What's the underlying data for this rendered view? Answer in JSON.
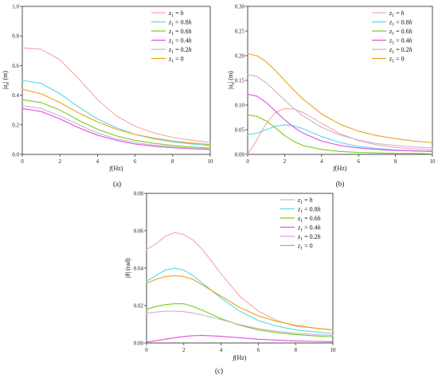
{
  "chart_data": [
    {
      "type": "line",
      "panel_label": "(a)",
      "xlabel_main": "f",
      "xlabel_unit": "(Hz)",
      "ylabel_main": "|u",
      "ylabel_sub": "x",
      "ylabel_rest": "| (m)",
      "xlim": [
        0,
        10
      ],
      "ylim": [
        0,
        1.0
      ],
      "xticks": [
        "0",
        "2",
        "4",
        "6",
        "8",
        "10"
      ],
      "yticks": [
        "0.0",
        "0.2",
        "0.4",
        "0.6",
        "0.8",
        "1.0"
      ],
      "legend_position": "top-right",
      "series": [
        {
          "name_sub": "1",
          "name_val": "h",
          "name_coef": "",
          "color": "#F7A6A6",
          "x": [
            0,
            1,
            2,
            3,
            4,
            5,
            6,
            7,
            8,
            9,
            10
          ],
          "y": [
            0.72,
            0.71,
            0.64,
            0.51,
            0.37,
            0.26,
            0.19,
            0.145,
            0.115,
            0.095,
            0.08
          ]
        },
        {
          "name_sub": "1",
          "name_val": "h",
          "name_coef": "0.8",
          "color": "#56DCE5",
          "x": [
            0,
            1,
            2,
            3,
            4,
            5,
            6,
            7,
            8,
            9,
            10
          ],
          "y": [
            0.5,
            0.48,
            0.41,
            0.32,
            0.24,
            0.18,
            0.135,
            0.105,
            0.085,
            0.07,
            0.06
          ]
        },
        {
          "name_sub": "1",
          "name_val": "h",
          "name_coef": "0.6",
          "color": "#7ACC1F",
          "x": [
            0,
            1,
            2,
            3,
            4,
            5,
            6,
            7,
            8,
            9,
            10
          ],
          "y": [
            0.37,
            0.35,
            0.3,
            0.23,
            0.17,
            0.125,
            0.095,
            0.075,
            0.06,
            0.05,
            0.042
          ]
        },
        {
          "name_sub": "1",
          "name_val": "h",
          "name_coef": "0.4",
          "color": "#E04FE0",
          "x": [
            0,
            1,
            2,
            3,
            4,
            5,
            6,
            7,
            8,
            9,
            10
          ],
          "y": [
            0.31,
            0.29,
            0.24,
            0.18,
            0.13,
            0.095,
            0.07,
            0.055,
            0.045,
            0.038,
            0.032
          ]
        },
        {
          "name_sub": "1",
          "name_val": "h",
          "name_coef": "0.2",
          "color": "#C4B4D0",
          "x": [
            0,
            1,
            2,
            3,
            4,
            5,
            6,
            7,
            8,
            9,
            10
          ],
          "y": [
            0.33,
            0.31,
            0.26,
            0.2,
            0.145,
            0.105,
            0.08,
            0.062,
            0.05,
            0.042,
            0.036
          ]
        },
        {
          "name_sub": "1",
          "name_val": "0",
          "name_coef": "",
          "color": "#E8A317",
          "x": [
            0,
            1,
            2,
            3,
            4,
            5,
            6,
            7,
            8,
            9,
            10
          ],
          "y": [
            0.44,
            0.41,
            0.35,
            0.28,
            0.22,
            0.17,
            0.135,
            0.11,
            0.09,
            0.077,
            0.066
          ]
        }
      ]
    },
    {
      "type": "line",
      "panel_label": "(b)",
      "xlabel_main": "f",
      "xlabel_unit": "(Hz)",
      "ylabel_main": "|u",
      "ylabel_sub": "z",
      "ylabel_rest": "| (m)",
      "xlim": [
        0,
        10
      ],
      "ylim": [
        0,
        0.3
      ],
      "xticks": [
        "0",
        "2",
        "4",
        "6",
        "8",
        "10"
      ],
      "yticks": [
        "0.00",
        "0.05",
        "0.10",
        "0.15",
        "0.20",
        "0.25",
        "0.30"
      ],
      "legend_position": "top-right",
      "series": [
        {
          "name_sub": "1",
          "name_val": "h",
          "name_coef": "",
          "color": "#F7A6A6",
          "x": [
            0,
            0.5,
            1,
            1.5,
            2,
            2.5,
            3,
            4,
            5,
            6,
            7,
            8,
            9,
            10
          ],
          "y": [
            0,
            0.03,
            0.062,
            0.085,
            0.093,
            0.092,
            0.085,
            0.063,
            0.042,
            0.028,
            0.019,
            0.014,
            0.011,
            0.009
          ]
        },
        {
          "name_sub": "1",
          "name_val": "h",
          "name_coef": "0.8",
          "color": "#56DCE5",
          "x": [
            0,
            0.5,
            1,
            1.5,
            2,
            2.5,
            3,
            4,
            5,
            6,
            7,
            8,
            9,
            10
          ],
          "y": [
            0.04,
            0.043,
            0.05,
            0.057,
            0.06,
            0.058,
            0.052,
            0.036,
            0.024,
            0.016,
            0.012,
            0.009,
            0.007,
            0.006
          ]
        },
        {
          "name_sub": "1",
          "name_val": "h",
          "name_coef": "0.6",
          "color": "#7ACC1F",
          "x": [
            0,
            0.5,
            1,
            1.5,
            2,
            2.5,
            3,
            4,
            5,
            6,
            7,
            8,
            9,
            10
          ],
          "y": [
            0.08,
            0.077,
            0.068,
            0.054,
            0.038,
            0.026,
            0.018,
            0.01,
            0.006,
            0.004,
            0.003,
            0.002,
            0.002,
            0.001
          ]
        },
        {
          "name_sub": "1",
          "name_val": "h",
          "name_coef": "0.4",
          "color": "#E04FE0",
          "x": [
            0,
            0.5,
            1,
            1.5,
            2,
            2.5,
            3,
            4,
            5,
            6,
            7,
            8,
            9,
            10
          ],
          "y": [
            0.122,
            0.118,
            0.105,
            0.088,
            0.07,
            0.055,
            0.043,
            0.027,
            0.018,
            0.013,
            0.01,
            0.008,
            0.007,
            0.006
          ]
        },
        {
          "name_sub": "1",
          "name_val": "h",
          "name_coef": "0.2",
          "color": "#C4B4D0",
          "x": [
            0,
            0.5,
            1,
            1.5,
            2,
            2.5,
            3,
            4,
            5,
            6,
            7,
            8,
            9,
            10
          ],
          "y": [
            0.162,
            0.158,
            0.145,
            0.128,
            0.11,
            0.093,
            0.078,
            0.055,
            0.039,
            0.029,
            0.022,
            0.018,
            0.015,
            0.013
          ]
        },
        {
          "name_sub": "1",
          "name_val": "0",
          "name_coef": "",
          "color": "#E8A317",
          "x": [
            0,
            0.5,
            1,
            1.5,
            2,
            2.5,
            3,
            4,
            5,
            6,
            7,
            8,
            9,
            10
          ],
          "y": [
            0.204,
            0.2,
            0.188,
            0.17,
            0.15,
            0.13,
            0.112,
            0.082,
            0.061,
            0.047,
            0.038,
            0.032,
            0.027,
            0.024
          ]
        }
      ]
    },
    {
      "type": "line",
      "panel_label": "(c)",
      "xlabel_main": "f",
      "xlabel_unit": "(Hz)",
      "ylabel_main": "|θ",
      "ylabel_sub": "",
      "ylabel_rest": "| (rad)",
      "xlim": [
        0,
        10
      ],
      "ylim": [
        0,
        0.08
      ],
      "xticks": [
        "0",
        "2",
        "4",
        "6",
        "8",
        "10"
      ],
      "yticks": [
        "0.00",
        "0.02",
        "0.04",
        "0.06",
        "0.08"
      ],
      "legend_position": "top-left",
      "series": [
        {
          "name_sub": "1",
          "name_val": "h",
          "name_coef": "",
          "color": "#F7A6A6",
          "x": [
            0,
            0.5,
            1,
            1.5,
            2,
            2.5,
            3,
            4,
            5,
            6,
            7,
            8,
            9,
            10
          ],
          "y": [
            0.05,
            0.053,
            0.057,
            0.059,
            0.058,
            0.055,
            0.05,
            0.037,
            0.025,
            0.017,
            0.012,
            0.009,
            0.008,
            0.007
          ]
        },
        {
          "name_sub": "1",
          "name_val": "h",
          "name_coef": "0.8",
          "color": "#56DCE5",
          "x": [
            0,
            0.5,
            1,
            1.5,
            2,
            2.5,
            3,
            4,
            5,
            6,
            7,
            8,
            9,
            10
          ],
          "y": [
            0.033,
            0.036,
            0.039,
            0.04,
            0.039,
            0.036,
            0.032,
            0.024,
            0.017,
            0.012,
            0.009,
            0.007,
            0.006,
            0.005
          ]
        },
        {
          "name_sub": "1",
          "name_val": "h",
          "name_coef": "0.6",
          "color": "#7ACC1F",
          "x": [
            0,
            0.5,
            1,
            1.5,
            2,
            2.5,
            3,
            4,
            5,
            6,
            7,
            8,
            9,
            10
          ],
          "y": [
            0.018,
            0.0195,
            0.0205,
            0.021,
            0.021,
            0.0195,
            0.0175,
            0.013,
            0.0095,
            0.007,
            0.0055,
            0.0045,
            0.0038,
            0.0033
          ]
        },
        {
          "name_sub": "1",
          "name_val": "h",
          "name_coef": "0.4",
          "color": "#E04FE0",
          "x": [
            0,
            0.5,
            1,
            1.5,
            2,
            2.5,
            3,
            4,
            5,
            6,
            7,
            8,
            9,
            10
          ],
          "y": [
            0.0005,
            0.0012,
            0.002,
            0.0028,
            0.0035,
            0.0039,
            0.004,
            0.0036,
            0.0028,
            0.002,
            0.0015,
            0.0011,
            0.0009,
            0.0007
          ]
        },
        {
          "name_sub": "1",
          "name_val": "h",
          "name_coef": "0.2",
          "color": "#C4B4D0",
          "x": [
            0,
            0.5,
            1,
            1.5,
            2,
            2.5,
            3,
            4,
            5,
            6,
            7,
            8,
            9,
            10
          ],
          "y": [
            0.016,
            0.0165,
            0.017,
            0.017,
            0.0168,
            0.016,
            0.015,
            0.0125,
            0.0098,
            0.0077,
            0.0062,
            0.0052,
            0.0045,
            0.004
          ]
        },
        {
          "name_sub": "1",
          "name_val": "0",
          "name_coef": "",
          "color": "#E8A317",
          "x": [
            0,
            0.5,
            1,
            1.5,
            2,
            2.5,
            3,
            4,
            5,
            6,
            7,
            8,
            9,
            10
          ],
          "y": [
            0.032,
            0.034,
            0.0355,
            0.036,
            0.0355,
            0.034,
            0.031,
            0.025,
            0.019,
            0.0145,
            0.0115,
            0.0095,
            0.008,
            0.007
          ]
        }
      ]
    }
  ]
}
